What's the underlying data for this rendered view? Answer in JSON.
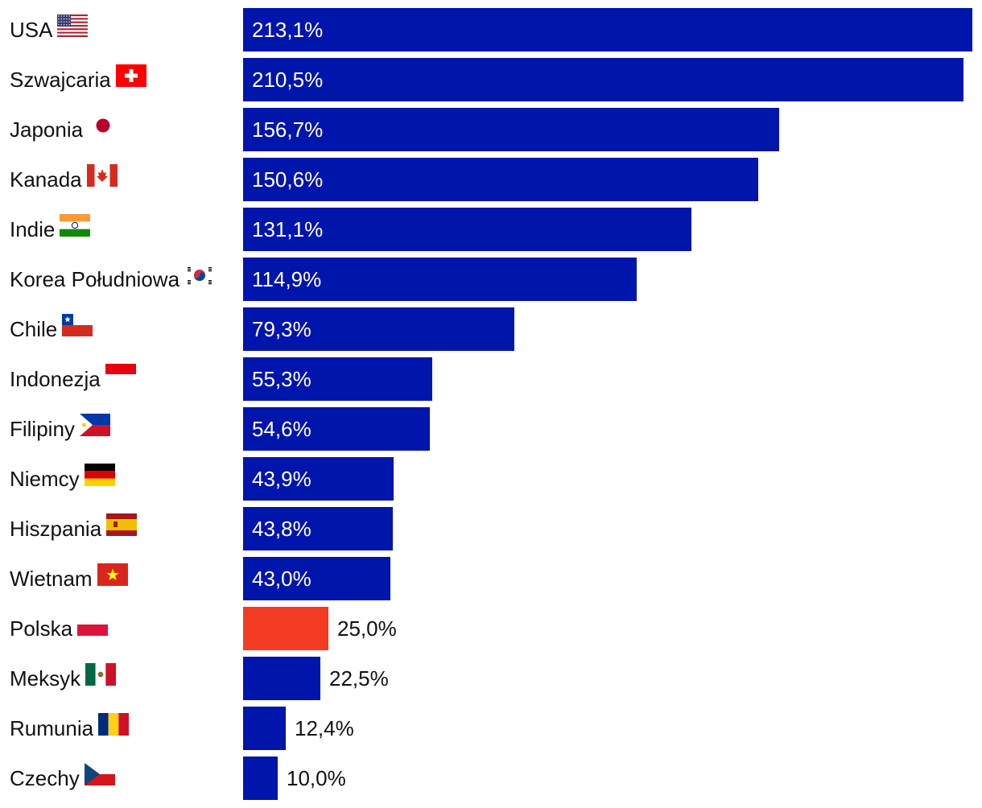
{
  "chart_data": {
    "type": "bar",
    "orientation": "horizontal",
    "title": "",
    "xlabel": "",
    "ylabel": "",
    "xlim": [
      0,
      213.1
    ],
    "grid": false,
    "legend": "none",
    "colors": {
      "default": "#0015AC",
      "highlight": "#F23C23"
    },
    "categories": [
      "USA",
      "Szwajcaria",
      "Japonia",
      "Kanada",
      "Indie",
      "Korea Południowa",
      "Chile",
      "Indonezja",
      "Filipiny",
      "Niemcy",
      "Hiszpania",
      "Wietnam",
      "Polska",
      "Meksyk",
      "Rumunia",
      "Czechy"
    ],
    "values": [
      213.1,
      210.5,
      156.7,
      150.6,
      131.1,
      114.9,
      79.3,
      55.3,
      54.6,
      43.9,
      43.8,
      43.0,
      25.0,
      22.5,
      12.4,
      10.0
    ],
    "value_labels": [
      "213,1%",
      "210,5%",
      "156,7%",
      "150,6%",
      "131,1%",
      "114,9%",
      "79,3%",
      "55,3%",
      "54,6%",
      "43,9%",
      "43,8%",
      "43,0%",
      "25,0%",
      "22,5%",
      "12,4%",
      "10,0%"
    ],
    "flags": [
      "usa-flag",
      "switzerland-flag",
      "japan-flag",
      "canada-flag",
      "india-flag",
      "south-korea-flag",
      "chile-flag",
      "indonesia-flag",
      "philippines-flag",
      "germany-flag",
      "spain-flag",
      "vietnam-flag",
      "poland-flag",
      "mexico-flag",
      "romania-flag",
      "czechia-flag"
    ],
    "highlighted": [
      "Polska"
    ]
  }
}
